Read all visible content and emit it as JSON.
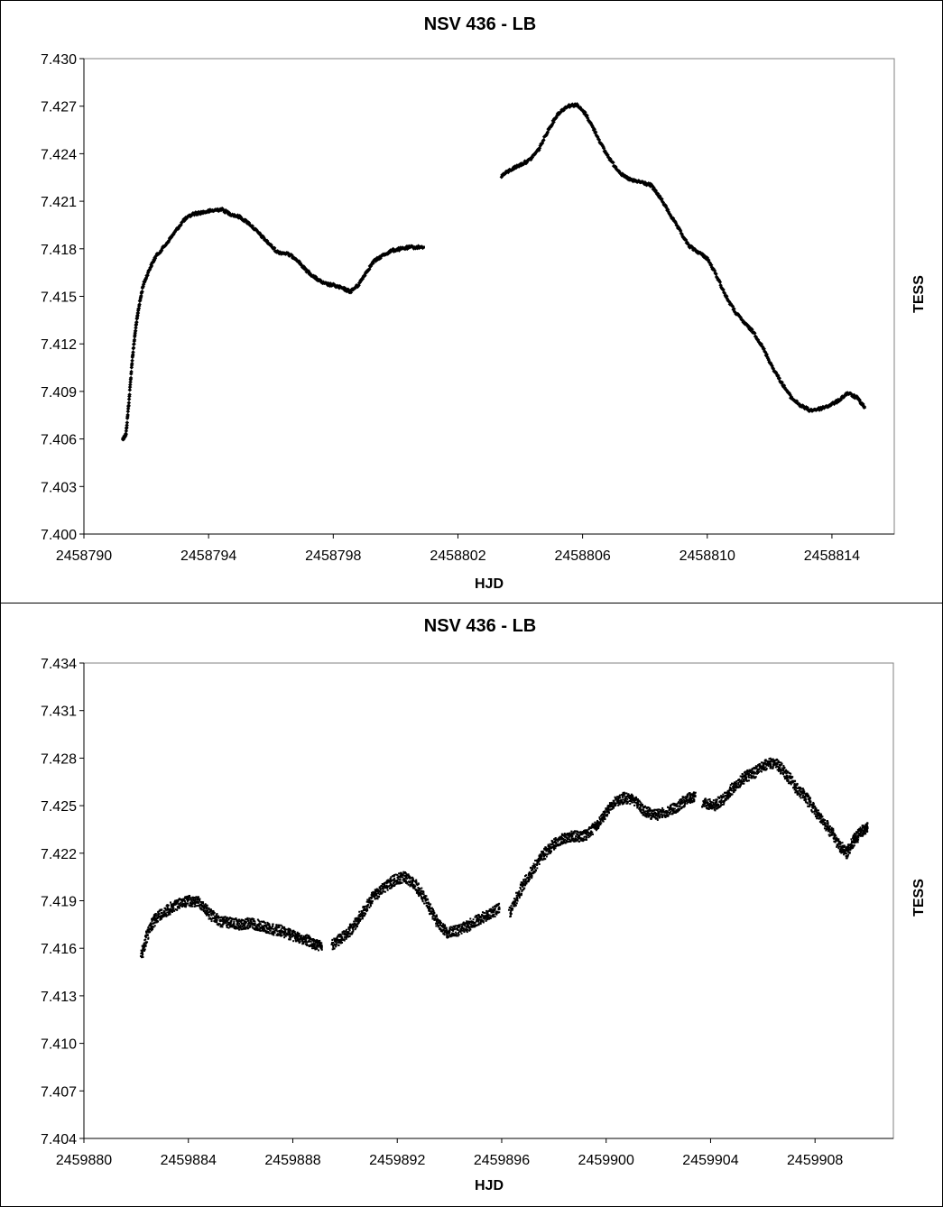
{
  "chart_data": [
    {
      "type": "scatter",
      "title": "NSV 436 - LB",
      "xlabel": "HJD",
      "ylabel": "TESS",
      "xlim": [
        2458790,
        2458816
      ],
      "ylim": [
        7.43,
        7.4
      ],
      "y_inverted": true,
      "grid": false,
      "marker_color": "#000000",
      "xticks": [
        "2458790",
        "2458794",
        "2458798",
        "2458802",
        "2458806",
        "2458810",
        "2458814"
      ],
      "yticks": [
        "7.400",
        "7.403",
        "7.406",
        "7.409",
        "7.412",
        "7.415",
        "7.418",
        "7.421",
        "7.424",
        "7.427",
        "7.430"
      ],
      "series": [
        {
          "segments": [
            [
              [
                2458791.25,
                7.406
              ],
              [
                2458791.35,
                7.4063
              ],
              [
                2458791.45,
                7.4085
              ],
              [
                2458791.55,
                7.411
              ],
              [
                2458791.65,
                7.4128
              ],
              [
                2458791.75,
                7.4142
              ],
              [
                2458791.9,
                7.4157
              ],
              [
                2458792.1,
                7.4167
              ],
              [
                2458792.3,
                7.4175
              ],
              [
                2458792.6,
                7.4182
              ],
              [
                2458792.9,
                7.419
              ],
              [
                2458793.2,
                7.4198
              ],
              [
                2458793.5,
                7.4202
              ],
              [
                2458793.8,
                7.4203
              ],
              [
                2458794.1,
                7.4204
              ],
              [
                2458794.4,
                7.4205
              ],
              [
                2458794.7,
                7.4202
              ],
              [
                2458795.0,
                7.42
              ],
              [
                2458795.3,
                7.4196
              ],
              [
                2458795.6,
                7.419
              ],
              [
                2458795.9,
                7.4184
              ],
              [
                2458796.2,
                7.4178
              ],
              [
                2458796.5,
                7.4177
              ],
              [
                2458796.8,
                7.4174
              ],
              [
                2458797.1,
                7.4167
              ],
              [
                2458797.4,
                7.4162
              ],
              [
                2458797.7,
                7.4158
              ],
              [
                2458798.0,
                7.4157
              ],
              [
                2458798.3,
                7.4155
              ],
              [
                2458798.55,
                7.4153
              ],
              [
                2458798.8,
                7.4157
              ],
              [
                2458799.05,
                7.4165
              ],
              [
                2458799.3,
                7.4172
              ],
              [
                2458799.6,
                7.4176
              ],
              [
                2458799.9,
                7.4179
              ],
              [
                2458800.2,
                7.418
              ],
              [
                2458800.5,
                7.4181
              ],
              [
                2458800.9,
                7.4181
              ]
            ],
            [
              [
                2458803.4,
                7.4226
              ],
              [
                2458803.7,
                7.423
              ],
              [
                2458804.0,
                7.4233
              ],
              [
                2458804.3,
                7.4236
              ],
              [
                2458804.6,
                7.4243
              ],
              [
                2458804.9,
                7.4255
              ],
              [
                2458805.2,
                7.4265
              ],
              [
                2458805.5,
                7.427
              ],
              [
                2458805.8,
                7.4271
              ],
              [
                2458806.1,
                7.4265
              ],
              [
                2458806.4,
                7.4254
              ],
              [
                2458806.7,
                7.4242
              ],
              [
                2458807.0,
                7.4233
              ],
              [
                2458807.3,
                7.4226
              ],
              [
                2458807.6,
                7.4223
              ],
              [
                2458807.9,
                7.4222
              ],
              [
                2458808.2,
                7.422
              ],
              [
                2458808.5,
                7.4212
              ],
              [
                2458808.8,
                7.4202
              ],
              [
                2458809.1,
                7.4192
              ],
              [
                2458809.4,
                7.4182
              ],
              [
                2458809.7,
                7.4178
              ],
              [
                2458810.0,
                7.4174
              ],
              [
                2458810.3,
                7.4163
              ],
              [
                2458810.6,
                7.415
              ],
              [
                2458810.9,
                7.414
              ],
              [
                2458811.2,
                7.4133
              ],
              [
                2458811.5,
                7.4127
              ],
              [
                2458811.8,
                7.4117
              ],
              [
                2458812.1,
                7.4105
              ],
              [
                2458812.4,
                7.4095
              ],
              [
                2458812.7,
                7.4086
              ],
              [
                2458813.0,
                7.4081
              ],
              [
                2458813.3,
                7.4078
              ],
              [
                2458813.6,
                7.4079
              ],
              [
                2458813.9,
                7.4081
              ],
              [
                2458814.2,
                7.4084
              ],
              [
                2458814.5,
                7.4089
              ],
              [
                2458814.8,
                7.4086
              ],
              [
                2458815.05,
                7.408
              ]
            ]
          ]
        }
      ]
    },
    {
      "type": "scatter",
      "title": "NSV 436 - LB",
      "xlabel": "HJD",
      "ylabel": "TESS",
      "xlim": [
        2459880,
        2459911
      ],
      "ylim": [
        7.434,
        7.404
      ],
      "y_inverted": true,
      "grid": false,
      "marker_color": "#000000",
      "xticks": [
        "2459880",
        "2459884",
        "2459888",
        "2459892",
        "2459896",
        "2459900",
        "2459904",
        "2459908"
      ],
      "yticks": [
        "7.404",
        "7.407",
        "7.410",
        "7.413",
        "7.416",
        "7.419",
        "7.422",
        "7.425",
        "7.428",
        "7.431",
        "7.434"
      ],
      "series": [
        {
          "segments": [
            [
              [
                2459882.2,
                7.4156
              ],
              [
                2459882.5,
                7.4172
              ],
              [
                2459882.8,
                7.418
              ],
              [
                2459883.2,
                7.4184
              ],
              [
                2459883.6,
                7.4188
              ],
              [
                2459884.0,
                7.419
              ],
              [
                2459884.4,
                7.4189
              ],
              [
                2459884.8,
                7.4182
              ],
              [
                2459885.2,
                7.4177
              ],
              [
                2459885.6,
                7.4176
              ],
              [
                2459886.0,
                7.4175
              ],
              [
                2459886.4,
                7.4176
              ],
              [
                2459886.8,
                7.4174
              ],
              [
                2459887.2,
                7.4172
              ],
              [
                2459887.6,
                7.4171
              ],
              [
                2459888.0,
                7.4168
              ],
              [
                2459888.4,
                7.4166
              ],
              [
                2459888.8,
                7.4163
              ],
              [
                2459889.1,
                7.4161
              ]
            ],
            [
              [
                2459889.5,
                7.4162
              ],
              [
                2459889.9,
                7.4167
              ],
              [
                2459890.3,
                7.4173
              ],
              [
                2459890.7,
                7.4183
              ],
              [
                2459891.1,
                7.4193
              ],
              [
                2459891.5,
                7.4198
              ],
              [
                2459891.9,
                7.4203
              ],
              [
                2459892.3,
                7.4205
              ],
              [
                2459892.7,
                7.42
              ],
              [
                2459893.1,
                7.419
              ],
              [
                2459893.5,
                7.4177
              ],
              [
                2459893.9,
                7.417
              ],
              [
                2459894.3,
                7.4171
              ],
              [
                2459894.7,
                7.4174
              ],
              [
                2459895.1,
                7.4178
              ],
              [
                2459895.5,
                7.4181
              ],
              [
                2459895.9,
                7.4185
              ]
            ],
            [
              [
                2459896.3,
                7.4182
              ],
              [
                2459896.7,
                7.4196
              ],
              [
                2459897.1,
                7.4207
              ],
              [
                2459897.5,
                7.4217
              ],
              [
                2459897.9,
                7.4224
              ],
              [
                2459898.3,
                7.4229
              ],
              [
                2459898.7,
                7.4231
              ],
              [
                2459899.1,
                7.423
              ],
              [
                2459899.5,
                7.4235
              ],
              [
                2459899.9,
                7.4243
              ],
              [
                2459900.3,
                7.4252
              ],
              [
                2459900.7,
                7.4255
              ],
              [
                2459901.1,
                7.4253
              ],
              [
                2459901.5,
                7.4246
              ],
              [
                2459901.9,
                7.4244
              ],
              [
                2459902.3,
                7.4246
              ],
              [
                2459902.7,
                7.4249
              ],
              [
                2459903.1,
                7.4254
              ],
              [
                2459903.4,
                7.4256
              ]
            ],
            [
              [
                2459903.7,
                7.4252
              ],
              [
                2459904.1,
                7.425
              ],
              [
                2459904.5,
                7.4254
              ],
              [
                2459904.9,
                7.4262
              ],
              [
                2459905.3,
                7.4268
              ],
              [
                2459905.7,
                7.4271
              ],
              [
                2459906.1,
                7.4276
              ],
              [
                2459906.5,
                7.4277
              ],
              [
                2459906.9,
                7.427
              ],
              [
                2459907.3,
                7.4261
              ],
              [
                2459907.7,
                7.4254
              ],
              [
                2459908.1,
                7.4245
              ],
              [
                2459908.5,
                7.4236
              ],
              [
                2459908.9,
                7.4226
              ],
              [
                2459909.2,
                7.422
              ],
              [
                2459909.5,
                7.4228
              ],
              [
                2459909.8,
                7.4234
              ],
              [
                2459910.0,
                7.4236
              ]
            ]
          ]
        }
      ]
    }
  ]
}
